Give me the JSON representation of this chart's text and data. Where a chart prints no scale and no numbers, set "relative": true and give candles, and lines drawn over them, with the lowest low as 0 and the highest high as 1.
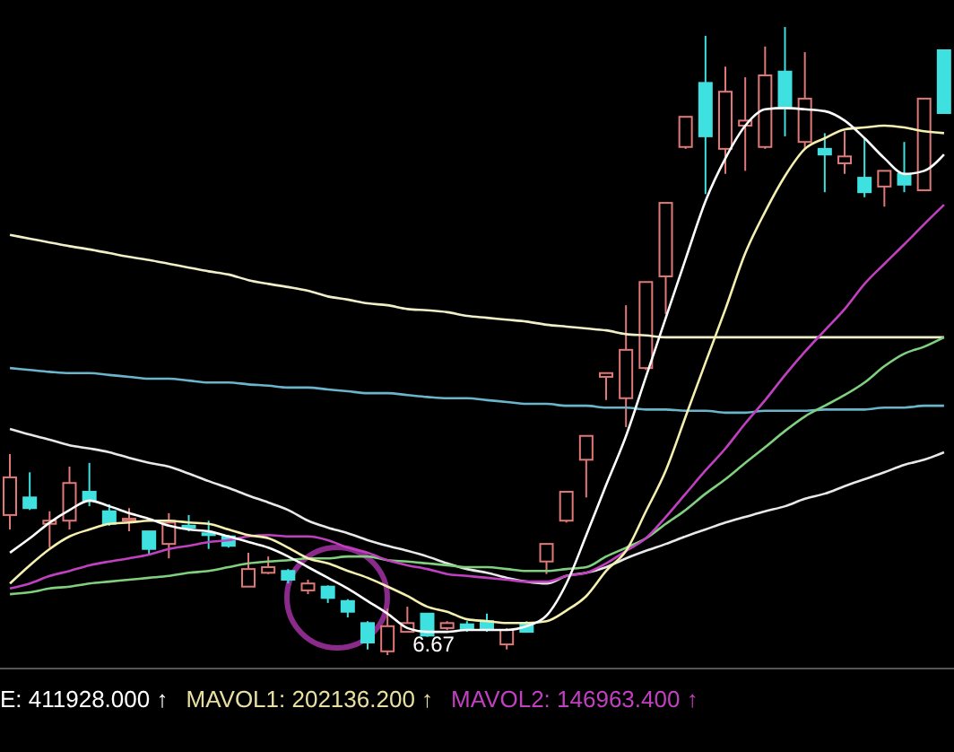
{
  "chart_data": {
    "type": "candlestick",
    "relative": true,
    "categories": [
      null,
      null,
      null,
      null,
      null,
      null,
      null,
      null,
      null,
      null,
      null,
      null,
      null,
      null,
      null,
      null,
      null,
      null,
      null,
      null,
      null,
      null,
      null,
      null,
      null,
      null,
      null,
      null,
      null,
      null,
      null,
      null,
      null,
      null,
      null,
      null,
      null,
      null,
      null,
      null,
      null,
      null,
      null,
      null,
      null,
      null,
      null,
      null
    ],
    "ohlc": [
      [
        0.223,
        0.32,
        0.2,
        0.283
      ],
      [
        0.251,
        0.291,
        0.231,
        0.234
      ],
      [
        0.209,
        0.229,
        0.171,
        0.214
      ],
      [
        0.214,
        0.3,
        0.2,
        0.274
      ],
      [
        0.26,
        0.306,
        0.237,
        0.246
      ],
      [
        0.229,
        0.24,
        0.206,
        0.209
      ],
      [
        0.214,
        0.234,
        0.197,
        0.217
      ],
      [
        0.197,
        0.197,
        0.16,
        0.169
      ],
      [
        0.177,
        0.226,
        0.154,
        0.211
      ],
      [
        0.206,
        0.223,
        0.197,
        0.203
      ],
      [
        0.194,
        0.214,
        0.169,
        0.191
      ],
      [
        0.189,
        0.191,
        0.171,
        0.174
      ],
      [
        0.109,
        0.163,
        0.109,
        0.137
      ],
      [
        0.131,
        0.157,
        0.129,
        0.14
      ],
      [
        0.134,
        0.137,
        0.114,
        0.12
      ],
      [
        0.103,
        0.12,
        0.097,
        0.114
      ],
      [
        0.109,
        0.111,
        0.083,
        0.091
      ],
      [
        0.086,
        0.089,
        0.06,
        0.069
      ],
      [
        0.051,
        0.054,
        0.009,
        0.02
      ],
      [
        0.006,
        0.074,
        0,
        0.046
      ],
      [
        0.037,
        0.077,
        0.037,
        0.051
      ],
      [
        0.066,
        0.066,
        0.029,
        0.031
      ],
      [
        0.043,
        0.054,
        0.04,
        0.051
      ],
      [
        0.049,
        0.054,
        0.037,
        0.04
      ],
      [
        0.054,
        0.066,
        0.037,
        0.04
      ],
      [
        0.017,
        0.043,
        0.009,
        0.04
      ],
      [
        0.049,
        0.054,
        0.037,
        0.037
      ],
      [
        0.149,
        0.177,
        0.129,
        0.177
      ],
      [
        0.214,
        0.26,
        0.211,
        0.26
      ],
      [
        0.311,
        0.349,
        0.251,
        0.349
      ],
      [
        0.443,
        0.449,
        0.406,
        0.449
      ],
      [
        0.409,
        0.557,
        0.363,
        0.486
      ],
      [
        0.457,
        0.594,
        0.454,
        0.594
      ],
      [
        0.603,
        0.72,
        0.543,
        0.72
      ],
      [
        0.809,
        0.857,
        0.806,
        0.857
      ],
      [
        0.911,
        0.986,
        0.734,
        0.826
      ],
      [
        0.806,
        0.937,
        0.766,
        0.897
      ],
      [
        0.843,
        0.92,
        0.771,
        0.851
      ],
      [
        0.809,
        0.969,
        0.806,
        0.923
      ],
      [
        0.929,
        1,
        0.826,
        0.871
      ],
      [
        0.817,
        0.96,
        0.806,
        0.886
      ],
      [
        0.806,
        0.831,
        0.737,
        0.797
      ],
      [
        0.783,
        0.834,
        0.766,
        0.794
      ],
      [
        0.76,
        0.823,
        0.729,
        0.737
      ],
      [
        0.746,
        0.771,
        0.714,
        0.771
      ],
      [
        0.766,
        0.817,
        0.737,
        0.749
      ],
      [
        0.74,
        0.886,
        0.74,
        0.886
      ],
      [
        0.963,
        0.963,
        0.863,
        0.863
      ]
    ],
    "colors": [
      "#e07878",
      "#3fe0e0",
      "#e07878",
      "#e07878",
      "#3fe0e0",
      "#3fe0e0",
      "#e07878",
      "#3fe0e0",
      "#e07878",
      "#3fe0e0",
      "#3fe0e0",
      "#3fe0e0",
      "#e07878",
      "#e07878",
      "#3fe0e0",
      "#e07878",
      "#3fe0e0",
      "#3fe0e0",
      "#3fe0e0",
      "#e07878",
      "#e07878",
      "#3fe0e0",
      "#e07878",
      "#3fe0e0",
      "#3fe0e0",
      "#e07878",
      "#3fe0e0",
      "#e07878",
      "#e07878",
      "#e07878",
      "#e07878",
      "#e07878",
      "#e07878",
      "#e07878",
      "#e07878",
      "#3fe0e0",
      "#e07878",
      "#e07878",
      "#e07878",
      "#3fe0e0",
      "#e07878",
      "#3fe0e0",
      "#e07878",
      "#3fe0e0",
      "#e07878",
      "#3fe0e0",
      "#e07878",
      "#3fe0e0"
    ],
    "series": [
      {
        "type": "line",
        "color": "#f0f0c8",
        "values": [
          0.669,
          0.663,
          0.657,
          0.651,
          0.646,
          0.64,
          0.634,
          0.629,
          0.623,
          0.617,
          0.611,
          0.606,
          0.597,
          0.591,
          0.586,
          0.58,
          0.571,
          0.566,
          0.56,
          0.557,
          0.551,
          0.549,
          0.546,
          0.54,
          0.537,
          0.534,
          0.531,
          0.526,
          0.523,
          0.52,
          0.517,
          0.511,
          0.509,
          0.506,
          0.506,
          0.506,
          0.506,
          0.506,
          0.506,
          0.506,
          0.506,
          0.506,
          0.506,
          0.506,
          0.506,
          0.506,
          0.506,
          0.506
        ]
      },
      {
        "type": "line",
        "color": "#6ab4cc",
        "values": [
          0.457,
          0.454,
          0.451,
          0.449,
          0.449,
          0.446,
          0.443,
          0.44,
          0.44,
          0.437,
          0.434,
          0.434,
          0.431,
          0.429,
          0.426,
          0.426,
          0.423,
          0.42,
          0.417,
          0.417,
          0.414,
          0.411,
          0.409,
          0.409,
          0.406,
          0.403,
          0.4,
          0.4,
          0.397,
          0.397,
          0.394,
          0.394,
          0.391,
          0.391,
          0.389,
          0.389,
          0.386,
          0.386,
          0.389,
          0.389,
          0.389,
          0.391,
          0.391,
          0.391,
          0.394,
          0.394,
          0.397,
          0.397
        ]
      },
      {
        "type": "line",
        "color": "#e8e8e8",
        "values": [
          0.36,
          0.351,
          0.343,
          0.334,
          0.329,
          0.323,
          0.314,
          0.306,
          0.3,
          0.289,
          0.277,
          0.266,
          0.254,
          0.243,
          0.231,
          0.214,
          0.203,
          0.194,
          0.183,
          0.174,
          0.166,
          0.157,
          0.146,
          0.137,
          0.131,
          0.123,
          0.117,
          0.114,
          0.126,
          0.131,
          0.14,
          0.154,
          0.166,
          0.177,
          0.189,
          0.2,
          0.211,
          0.22,
          0.229,
          0.237,
          0.249,
          0.257,
          0.269,
          0.28,
          0.291,
          0.303,
          0.311,
          0.323
        ]
      },
      {
        "type": "line",
        "color": "#80d080",
        "values": [
          0.097,
          0.1,
          0.106,
          0.109,
          0.114,
          0.117,
          0.12,
          0.123,
          0.126,
          0.131,
          0.134,
          0.14,
          0.146,
          0.149,
          0.151,
          0.154,
          0.154,
          0.157,
          0.157,
          0.151,
          0.149,
          0.146,
          0.143,
          0.14,
          0.14,
          0.137,
          0.134,
          0.134,
          0.137,
          0.14,
          0.157,
          0.171,
          0.186,
          0.209,
          0.231,
          0.257,
          0.28,
          0.306,
          0.331,
          0.357,
          0.38,
          0.397,
          0.414,
          0.434,
          0.46,
          0.48,
          0.491,
          0.506
        ]
      },
      {
        "type": "line",
        "color": "#c040c0",
        "values": [
          0.106,
          0.114,
          0.126,
          0.134,
          0.143,
          0.149,
          0.154,
          0.16,
          0.169,
          0.174,
          0.18,
          0.183,
          0.189,
          0.191,
          0.189,
          0.189,
          0.183,
          0.171,
          0.163,
          0.151,
          0.143,
          0.137,
          0.129,
          0.126,
          0.123,
          0.12,
          0.117,
          0.117,
          0.126,
          0.131,
          0.146,
          0.166,
          0.186,
          0.22,
          0.257,
          0.294,
          0.329,
          0.369,
          0.406,
          0.446,
          0.483,
          0.517,
          0.551,
          0.591,
          0.623,
          0.654,
          0.686,
          0.717
        ]
      },
      {
        "type": "line",
        "color": "#f5f0b0",
        "values": [
          0.114,
          0.143,
          0.169,
          0.189,
          0.2,
          0.209,
          0.211,
          0.214,
          0.214,
          0.211,
          0.209,
          0.2,
          0.191,
          0.186,
          0.171,
          0.154,
          0.146,
          0.134,
          0.123,
          0.109,
          0.094,
          0.077,
          0.069,
          0.057,
          0.054,
          0.051,
          0.051,
          0.054,
          0.071,
          0.094,
          0.134,
          0.166,
          0.229,
          0.294,
          0.38,
          0.466,
          0.551,
          0.64,
          0.706,
          0.763,
          0.806,
          0.823,
          0.837,
          0.84,
          0.843,
          0.84,
          0.834,
          0.831
        ]
      },
      {
        "type": "line",
        "color": "#ffffff",
        "values": [
          0.163,
          0.186,
          0.211,
          0.231,
          0.246,
          0.237,
          0.226,
          0.217,
          0.206,
          0.2,
          0.197,
          0.189,
          0.18,
          0.171,
          0.157,
          0.14,
          0.123,
          0.106,
          0.086,
          0.066,
          0.043,
          0.037,
          0.037,
          0.04,
          0.04,
          0.04,
          0.046,
          0.063,
          0.114,
          0.191,
          0.271,
          0.349,
          0.443,
          0.537,
          0.631,
          0.723,
          0.791,
          0.843,
          0.869,
          0.871,
          0.869,
          0.866,
          0.851,
          0.823,
          0.791,
          0.766,
          0.771,
          0.797
        ]
      }
    ],
    "annotations": [
      "6.67",
      "E: 411928.000 ↑",
      "MAVOL1: 202136.200 ↑",
      "MAVOL2: 146963.400 ↑"
    ]
  }
}
